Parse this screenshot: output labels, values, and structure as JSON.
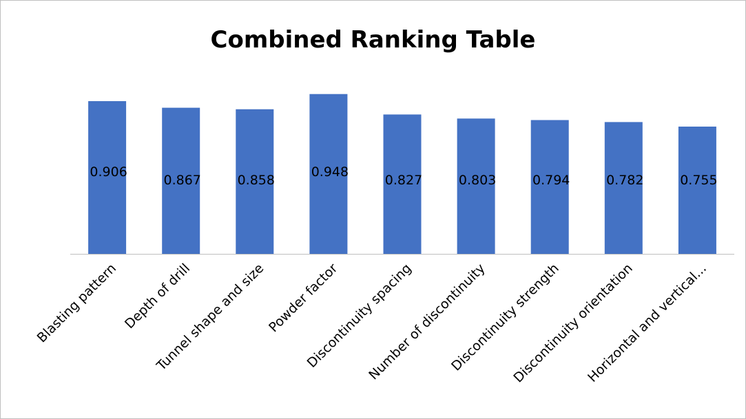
{
  "chart_data": {
    "type": "bar",
    "title": "Combined Ranking Table",
    "xlabel": "",
    "ylabel": "",
    "categories": [
      "Blasting pattern",
      "Depth of drill",
      "Tunnel shape and size",
      "Powder factor",
      "Discontinuity spacing",
      "Number of discontinuity",
      "Discontinuity strength",
      "Discontinuity orientation",
      "Horizontal and vertical..."
    ],
    "values": [
      0.906,
      0.867,
      0.858,
      0.948,
      0.827,
      0.803,
      0.794,
      0.782,
      0.755
    ],
    "value_labels": [
      "0.906",
      "0.867",
      "0.858",
      "0.948",
      "0.827",
      "0.803",
      "0.794",
      "0.782",
      "0.755"
    ],
    "ylim": [
      0,
      1
    ],
    "grid": false,
    "legend": "none",
    "bar_color": "#4472C4",
    "axis_color": "#BFBFBF"
  }
}
